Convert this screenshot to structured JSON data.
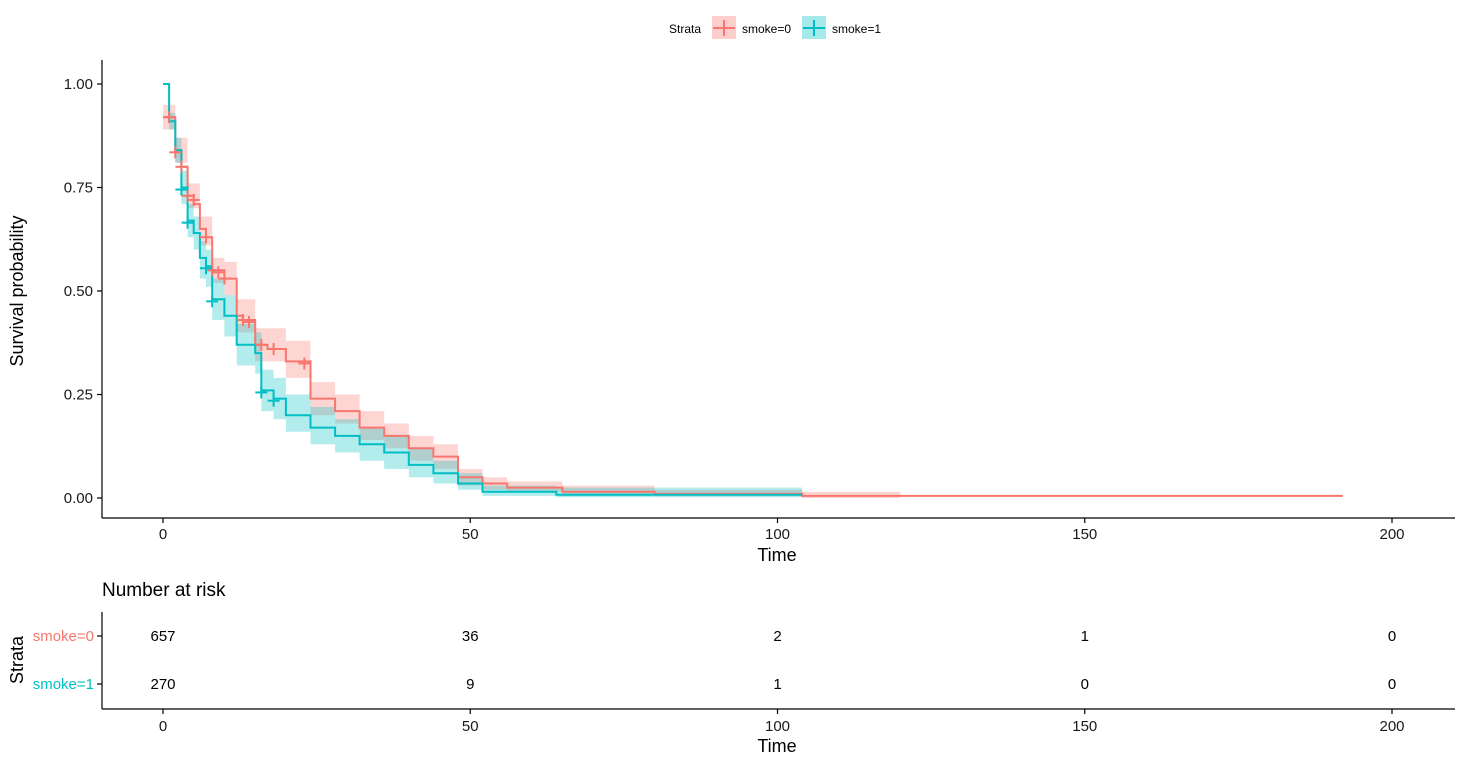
{
  "colors": {
    "smoke0": "#F8766D",
    "smoke1": "#00BFC4",
    "axis": "#000000"
  },
  "legend": {
    "title": "Strata",
    "items": [
      "smoke=0",
      "smoke=1"
    ],
    "position": "top"
  },
  "chart_data": {
    "type": "line",
    "subtype": "kaplan-meier",
    "xlabel": "Time",
    "ylabel": "Survival probability",
    "xlim": [
      0,
      200
    ],
    "ylim": [
      0,
      1
    ],
    "xticks": [
      0,
      50,
      100,
      150,
      200
    ],
    "yticks": [
      0.0,
      0.25,
      0.5,
      0.75,
      1.0
    ],
    "ytick_labels": [
      "0.00",
      "0.25",
      "0.50",
      "0.75",
      "1.00"
    ],
    "grid": false,
    "series": [
      {
        "name": "smoke=0",
        "color": "#F8766D",
        "steps": [
          [
            0,
            0.92
          ],
          [
            2,
            0.92
          ],
          [
            2,
            0.84
          ],
          [
            3,
            0.84
          ],
          [
            3,
            0.8
          ],
          [
            4,
            0.8
          ],
          [
            4,
            0.73
          ],
          [
            5,
            0.73
          ],
          [
            5,
            0.71
          ],
          [
            6,
            0.71
          ],
          [
            6,
            0.65
          ],
          [
            7,
            0.65
          ],
          [
            7,
            0.63
          ],
          [
            8,
            0.63
          ],
          [
            8,
            0.55
          ],
          [
            10,
            0.55
          ],
          [
            10,
            0.53
          ],
          [
            12,
            0.53
          ],
          [
            12,
            0.44
          ],
          [
            13,
            0.44
          ],
          [
            13,
            0.43
          ],
          [
            15,
            0.43
          ],
          [
            15,
            0.37
          ],
          [
            17,
            0.37
          ],
          [
            17,
            0.36
          ],
          [
            20,
            0.36
          ],
          [
            20,
            0.33
          ],
          [
            24,
            0.33
          ],
          [
            24,
            0.24
          ],
          [
            28,
            0.24
          ],
          [
            28,
            0.21
          ],
          [
            32,
            0.21
          ],
          [
            32,
            0.17
          ],
          [
            36,
            0.17
          ],
          [
            36,
            0.15
          ],
          [
            40,
            0.15
          ],
          [
            40,
            0.12
          ],
          [
            44,
            0.12
          ],
          [
            44,
            0.1
          ],
          [
            48,
            0.1
          ],
          [
            48,
            0.05
          ],
          [
            52,
            0.05
          ],
          [
            52,
            0.035
          ],
          [
            56,
            0.035
          ],
          [
            56,
            0.025
          ],
          [
            65,
            0.025
          ],
          [
            65,
            0.015
          ],
          [
            80,
            0.015
          ],
          [
            80,
            0.01
          ],
          [
            104,
            0.01
          ],
          [
            104,
            0.005
          ],
          [
            192,
            0.005
          ]
        ],
        "ci_lower": [
          [
            0,
            0.89
          ],
          [
            2,
            0.81
          ],
          [
            4,
            0.7
          ],
          [
            6,
            0.61
          ],
          [
            8,
            0.52
          ],
          [
            10,
            0.49
          ],
          [
            12,
            0.4
          ],
          [
            15,
            0.33
          ],
          [
            20,
            0.29
          ],
          [
            24,
            0.2
          ],
          [
            28,
            0.18
          ],
          [
            32,
            0.14
          ],
          [
            36,
            0.12
          ],
          [
            40,
            0.09
          ],
          [
            44,
            0.07
          ],
          [
            48,
            0.03
          ],
          [
            52,
            0.02
          ],
          [
            56,
            0.015
          ],
          [
            65,
            0.008
          ],
          [
            80,
            0.004
          ],
          [
            104,
            0.0
          ],
          [
            120,
            0.0
          ]
        ],
        "ci_upper": [
          [
            0,
            0.95
          ],
          [
            2,
            0.87
          ],
          [
            4,
            0.76
          ],
          [
            6,
            0.68
          ],
          [
            8,
            0.58
          ],
          [
            10,
            0.57
          ],
          [
            12,
            0.48
          ],
          [
            15,
            0.41
          ],
          [
            20,
            0.38
          ],
          [
            24,
            0.28
          ],
          [
            28,
            0.25
          ],
          [
            32,
            0.21
          ],
          [
            36,
            0.18
          ],
          [
            40,
            0.15
          ],
          [
            44,
            0.13
          ],
          [
            48,
            0.07
          ],
          [
            52,
            0.05
          ],
          [
            56,
            0.04
          ],
          [
            65,
            0.03
          ],
          [
            80,
            0.02
          ],
          [
            104,
            0.015
          ],
          [
            120,
            0.015
          ]
        ],
        "censor_marks": [
          [
            1,
            0.92
          ],
          [
            2,
            0.835
          ],
          [
            3,
            0.8
          ],
          [
            4,
            0.73
          ],
          [
            5,
            0.72
          ],
          [
            7,
            0.63
          ],
          [
            8,
            0.55
          ],
          [
            9,
            0.545
          ],
          [
            10,
            0.53
          ],
          [
            13,
            0.43
          ],
          [
            14,
            0.425
          ],
          [
            16,
            0.37
          ],
          [
            18,
            0.36
          ],
          [
            23,
            0.325
          ]
        ]
      },
      {
        "name": "smoke=1",
        "color": "#00BFC4",
        "steps": [
          [
            0,
            1.0
          ],
          [
            1,
            1.0
          ],
          [
            1,
            0.91
          ],
          [
            2,
            0.91
          ],
          [
            2,
            0.84
          ],
          [
            3,
            0.84
          ],
          [
            3,
            0.75
          ],
          [
            4,
            0.75
          ],
          [
            4,
            0.67
          ],
          [
            5,
            0.67
          ],
          [
            5,
            0.64
          ],
          [
            6,
            0.64
          ],
          [
            6,
            0.58
          ],
          [
            7,
            0.58
          ],
          [
            7,
            0.56
          ],
          [
            8,
            0.56
          ],
          [
            8,
            0.48
          ],
          [
            10,
            0.48
          ],
          [
            10,
            0.44
          ],
          [
            12,
            0.44
          ],
          [
            12,
            0.37
          ],
          [
            15,
            0.37
          ],
          [
            15,
            0.35
          ],
          [
            16,
            0.35
          ],
          [
            16,
            0.26
          ],
          [
            18,
            0.26
          ],
          [
            18,
            0.24
          ],
          [
            20,
            0.24
          ],
          [
            20,
            0.2
          ],
          [
            24,
            0.2
          ],
          [
            24,
            0.17
          ],
          [
            28,
            0.17
          ],
          [
            28,
            0.15
          ],
          [
            32,
            0.15
          ],
          [
            32,
            0.13
          ],
          [
            36,
            0.13
          ],
          [
            36,
            0.11
          ],
          [
            40,
            0.11
          ],
          [
            40,
            0.08
          ],
          [
            44,
            0.08
          ],
          [
            44,
            0.06
          ],
          [
            48,
            0.06
          ],
          [
            48,
            0.035
          ],
          [
            52,
            0.035
          ],
          [
            52,
            0.015
          ],
          [
            64,
            0.015
          ],
          [
            64,
            0.008
          ],
          [
            104,
            0.008
          ]
        ],
        "ci_lower": [
          [
            0,
            1.0
          ],
          [
            1,
            0.89
          ],
          [
            2,
            0.81
          ],
          [
            3,
            0.71
          ],
          [
            4,
            0.63
          ],
          [
            5,
            0.6
          ],
          [
            6,
            0.53
          ],
          [
            7,
            0.51
          ],
          [
            8,
            0.43
          ],
          [
            10,
            0.39
          ],
          [
            12,
            0.32
          ],
          [
            15,
            0.3
          ],
          [
            16,
            0.21
          ],
          [
            18,
            0.19
          ],
          [
            20,
            0.16
          ],
          [
            24,
            0.13
          ],
          [
            28,
            0.11
          ],
          [
            32,
            0.09
          ],
          [
            36,
            0.07
          ],
          [
            40,
            0.05
          ],
          [
            44,
            0.035
          ],
          [
            48,
            0.02
          ],
          [
            52,
            0.005
          ],
          [
            64,
            0.002
          ],
          [
            104,
            0.0
          ]
        ],
        "ci_upper": [
          [
            0,
            1.0
          ],
          [
            1,
            0.93
          ],
          [
            2,
            0.87
          ],
          [
            3,
            0.79
          ],
          [
            4,
            0.71
          ],
          [
            5,
            0.68
          ],
          [
            6,
            0.62
          ],
          [
            7,
            0.6
          ],
          [
            8,
            0.53
          ],
          [
            10,
            0.49
          ],
          [
            12,
            0.42
          ],
          [
            15,
            0.4
          ],
          [
            16,
            0.31
          ],
          [
            18,
            0.29
          ],
          [
            20,
            0.25
          ],
          [
            24,
            0.22
          ],
          [
            28,
            0.19
          ],
          [
            32,
            0.17
          ],
          [
            36,
            0.15
          ],
          [
            40,
            0.12
          ],
          [
            44,
            0.09
          ],
          [
            48,
            0.06
          ],
          [
            52,
            0.03
          ],
          [
            64,
            0.025
          ],
          [
            104,
            0.02
          ]
        ],
        "censor_marks": [
          [
            3,
            0.745
          ],
          [
            4,
            0.665
          ],
          [
            7,
            0.555
          ],
          [
            8,
            0.475
          ],
          [
            16,
            0.255
          ],
          [
            18,
            0.235
          ]
        ]
      }
    ],
    "risk_table": {
      "title": "Number at risk",
      "ylabel": "Strata",
      "xlabel": "Time",
      "times": [
        0,
        50,
        100,
        150,
        200
      ],
      "rows": [
        {
          "label": "smoke=0",
          "color": "#F8766D",
          "values": [
            "657",
            "36",
            "2",
            "1",
            "0"
          ]
        },
        {
          "label": "smoke=1",
          "color": "#00BFC4",
          "values": [
            "270",
            "9",
            "1",
            "0",
            "0"
          ]
        }
      ]
    }
  }
}
